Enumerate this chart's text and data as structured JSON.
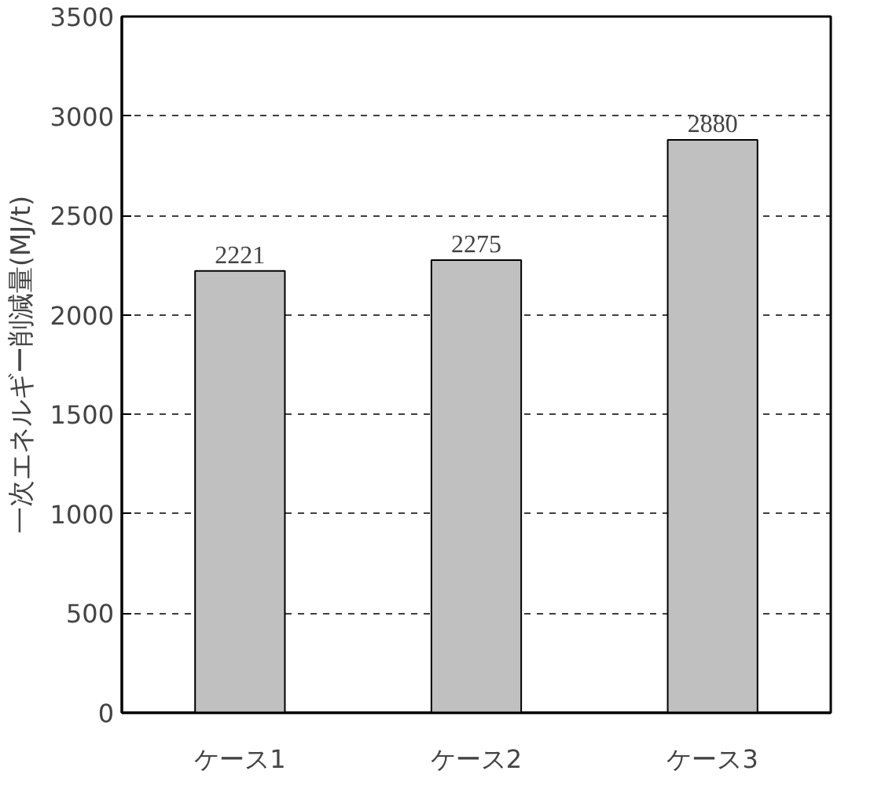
{
  "chart_data": {
    "type": "bar",
    "ylabel": "一次エネルギー削減量(MJ/t)",
    "categories": [
      "ケース1",
      "ケース2",
      "ケース3"
    ],
    "values": [
      2221,
      2275,
      2880
    ],
    "color": "#c0c0c0",
    "ylim": [
      0,
      3500
    ],
    "yticks": [
      0,
      500,
      1000,
      1500,
      2000,
      2500,
      3000,
      3500
    ],
    "grid": "y",
    "data_labels": true
  }
}
